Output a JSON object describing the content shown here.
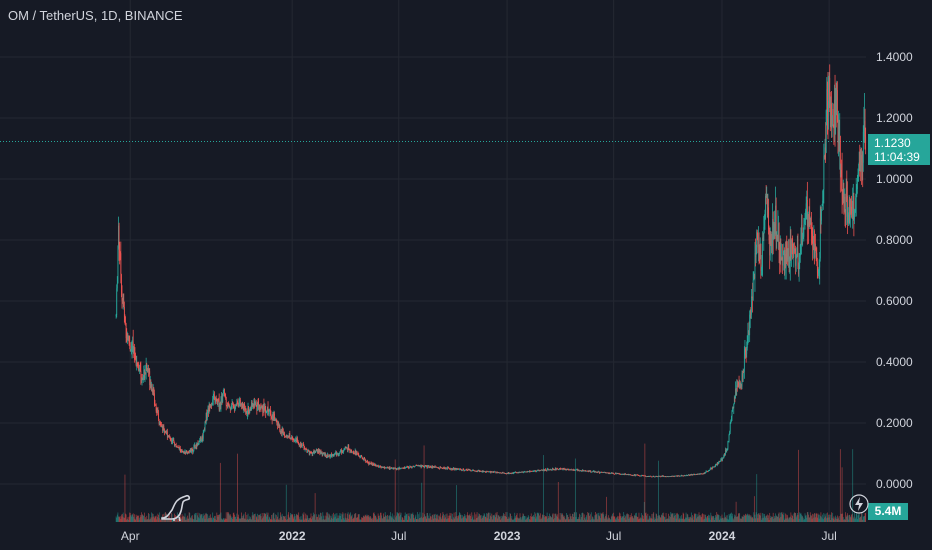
{
  "header": {
    "title": "OM / TetherUS, 1D, BINANCE"
  },
  "price_label": {
    "price": "1.1230",
    "countdown": "11:04:39"
  },
  "volume_label": "5.4M",
  "icons": {
    "logo": "tradingview-dino-logo",
    "replay": "lightning-icon"
  },
  "colors": {
    "up": "#26a69a",
    "down": "#ef5350",
    "background": "#161a25",
    "grid": "#242832",
    "text": "#d1d4dc"
  },
  "chart_data": {
    "type": "candlestick",
    "symbol": "OM / TetherUS",
    "interval": "1D",
    "exchange": "BINANCE",
    "x_tick_labels": [
      "Apr",
      "2022",
      "Jul",
      "2023",
      "Jul",
      "2024",
      "Jul"
    ],
    "x_tick_dates": [
      "2021-04-01",
      "2022-01-01",
      "2022-07-01",
      "2023-01-01",
      "2023-07-01",
      "2024-01-01",
      "2024-07-01"
    ],
    "y_tick_labels": [
      "0.0000",
      "0.2000",
      "0.4000",
      "0.6000",
      "0.8000",
      "1.0000",
      "1.2000",
      "1.4000"
    ],
    "ylim": [
      -0.1,
      1.45
    ],
    "xlim": [
      "2021-03-01",
      "2024-09-05"
    ],
    "grid": true,
    "last_price": 1.123,
    "price_path": [
      [
        "2021-03-08",
        0.55
      ],
      [
        "2021-03-12",
        0.85
      ],
      [
        "2021-03-18",
        0.62
      ],
      [
        "2021-03-25",
        0.5
      ],
      [
        "2021-04-01",
        0.45
      ],
      [
        "2021-04-10",
        0.42
      ],
      [
        "2021-04-20",
        0.35
      ],
      [
        "2021-05-01",
        0.38
      ],
      [
        "2021-05-10",
        0.3
      ],
      [
        "2021-05-20",
        0.2
      ],
      [
        "2021-06-01",
        0.17
      ],
      [
        "2021-06-15",
        0.13
      ],
      [
        "2021-07-01",
        0.1
      ],
      [
        "2021-07-15",
        0.11
      ],
      [
        "2021-08-01",
        0.15
      ],
      [
        "2021-08-10",
        0.24
      ],
      [
        "2021-08-20",
        0.28
      ],
      [
        "2021-09-01",
        0.26
      ],
      [
        "2021-09-07",
        0.3
      ],
      [
        "2021-09-15",
        0.25
      ],
      [
        "2021-10-01",
        0.27
      ],
      [
        "2021-10-15",
        0.24
      ],
      [
        "2021-11-01",
        0.26
      ],
      [
        "2021-11-15",
        0.25
      ],
      [
        "2021-12-01",
        0.22
      ],
      [
        "2021-12-15",
        0.17
      ],
      [
        "2022-01-01",
        0.15
      ],
      [
        "2022-01-15",
        0.13
      ],
      [
        "2022-02-01",
        0.1
      ],
      [
        "2022-02-15",
        0.11
      ],
      [
        "2022-03-01",
        0.09
      ],
      [
        "2022-03-20",
        0.1
      ],
      [
        "2022-04-05",
        0.12
      ],
      [
        "2022-04-20",
        0.1
      ],
      [
        "2022-05-10",
        0.07
      ],
      [
        "2022-06-01",
        0.055
      ],
      [
        "2022-07-01",
        0.05
      ],
      [
        "2022-08-01",
        0.06
      ],
      [
        "2022-09-01",
        0.055
      ],
      [
        "2022-10-01",
        0.05
      ],
      [
        "2022-11-01",
        0.045
      ],
      [
        "2022-12-01",
        0.04
      ],
      [
        "2023-01-01",
        0.035
      ],
      [
        "2023-02-01",
        0.04
      ],
      [
        "2023-03-01",
        0.045
      ],
      [
        "2023-04-01",
        0.05
      ],
      [
        "2023-05-01",
        0.045
      ],
      [
        "2023-06-01",
        0.04
      ],
      [
        "2023-07-01",
        0.035
      ],
      [
        "2023-08-01",
        0.03
      ],
      [
        "2023-09-01",
        0.025
      ],
      [
        "2023-10-01",
        0.025
      ],
      [
        "2023-11-01",
        0.028
      ],
      [
        "2023-12-01",
        0.035
      ],
      [
        "2023-12-20",
        0.06
      ],
      [
        "2024-01-01",
        0.08
      ],
      [
        "2024-01-10",
        0.12
      ],
      [
        "2024-01-20",
        0.26
      ],
      [
        "2024-01-28",
        0.32
      ],
      [
        "2024-02-05",
        0.35
      ],
      [
        "2024-02-15",
        0.5
      ],
      [
        "2024-02-22",
        0.62
      ],
      [
        "2024-03-01",
        0.8
      ],
      [
        "2024-03-08",
        0.72
      ],
      [
        "2024-03-15",
        0.96
      ],
      [
        "2024-03-22",
        0.8
      ],
      [
        "2024-04-01",
        0.85
      ],
      [
        "2024-04-10",
        0.75
      ],
      [
        "2024-04-20",
        0.72
      ],
      [
        "2024-05-01",
        0.78
      ],
      [
        "2024-05-10",
        0.72
      ],
      [
        "2024-05-20",
        0.85
      ],
      [
        "2024-05-28",
        0.92
      ],
      [
        "2024-06-05",
        0.78
      ],
      [
        "2024-06-12",
        0.68
      ],
      [
        "2024-06-18",
        0.88
      ],
      [
        "2024-06-24",
        1.1
      ],
      [
        "2024-06-30",
        1.35
      ],
      [
        "2024-07-05",
        1.2
      ],
      [
        "2024-07-12",
        1.25
      ],
      [
        "2024-07-20",
        1.05
      ],
      [
        "2024-07-28",
        0.92
      ],
      [
        "2024-08-05",
        0.88
      ],
      [
        "2024-08-12",
        0.9
      ],
      [
        "2024-08-20",
        1.05
      ],
      [
        "2024-08-27",
        1.12
      ],
      [
        "2024-09-01",
        1.123
      ]
    ]
  }
}
